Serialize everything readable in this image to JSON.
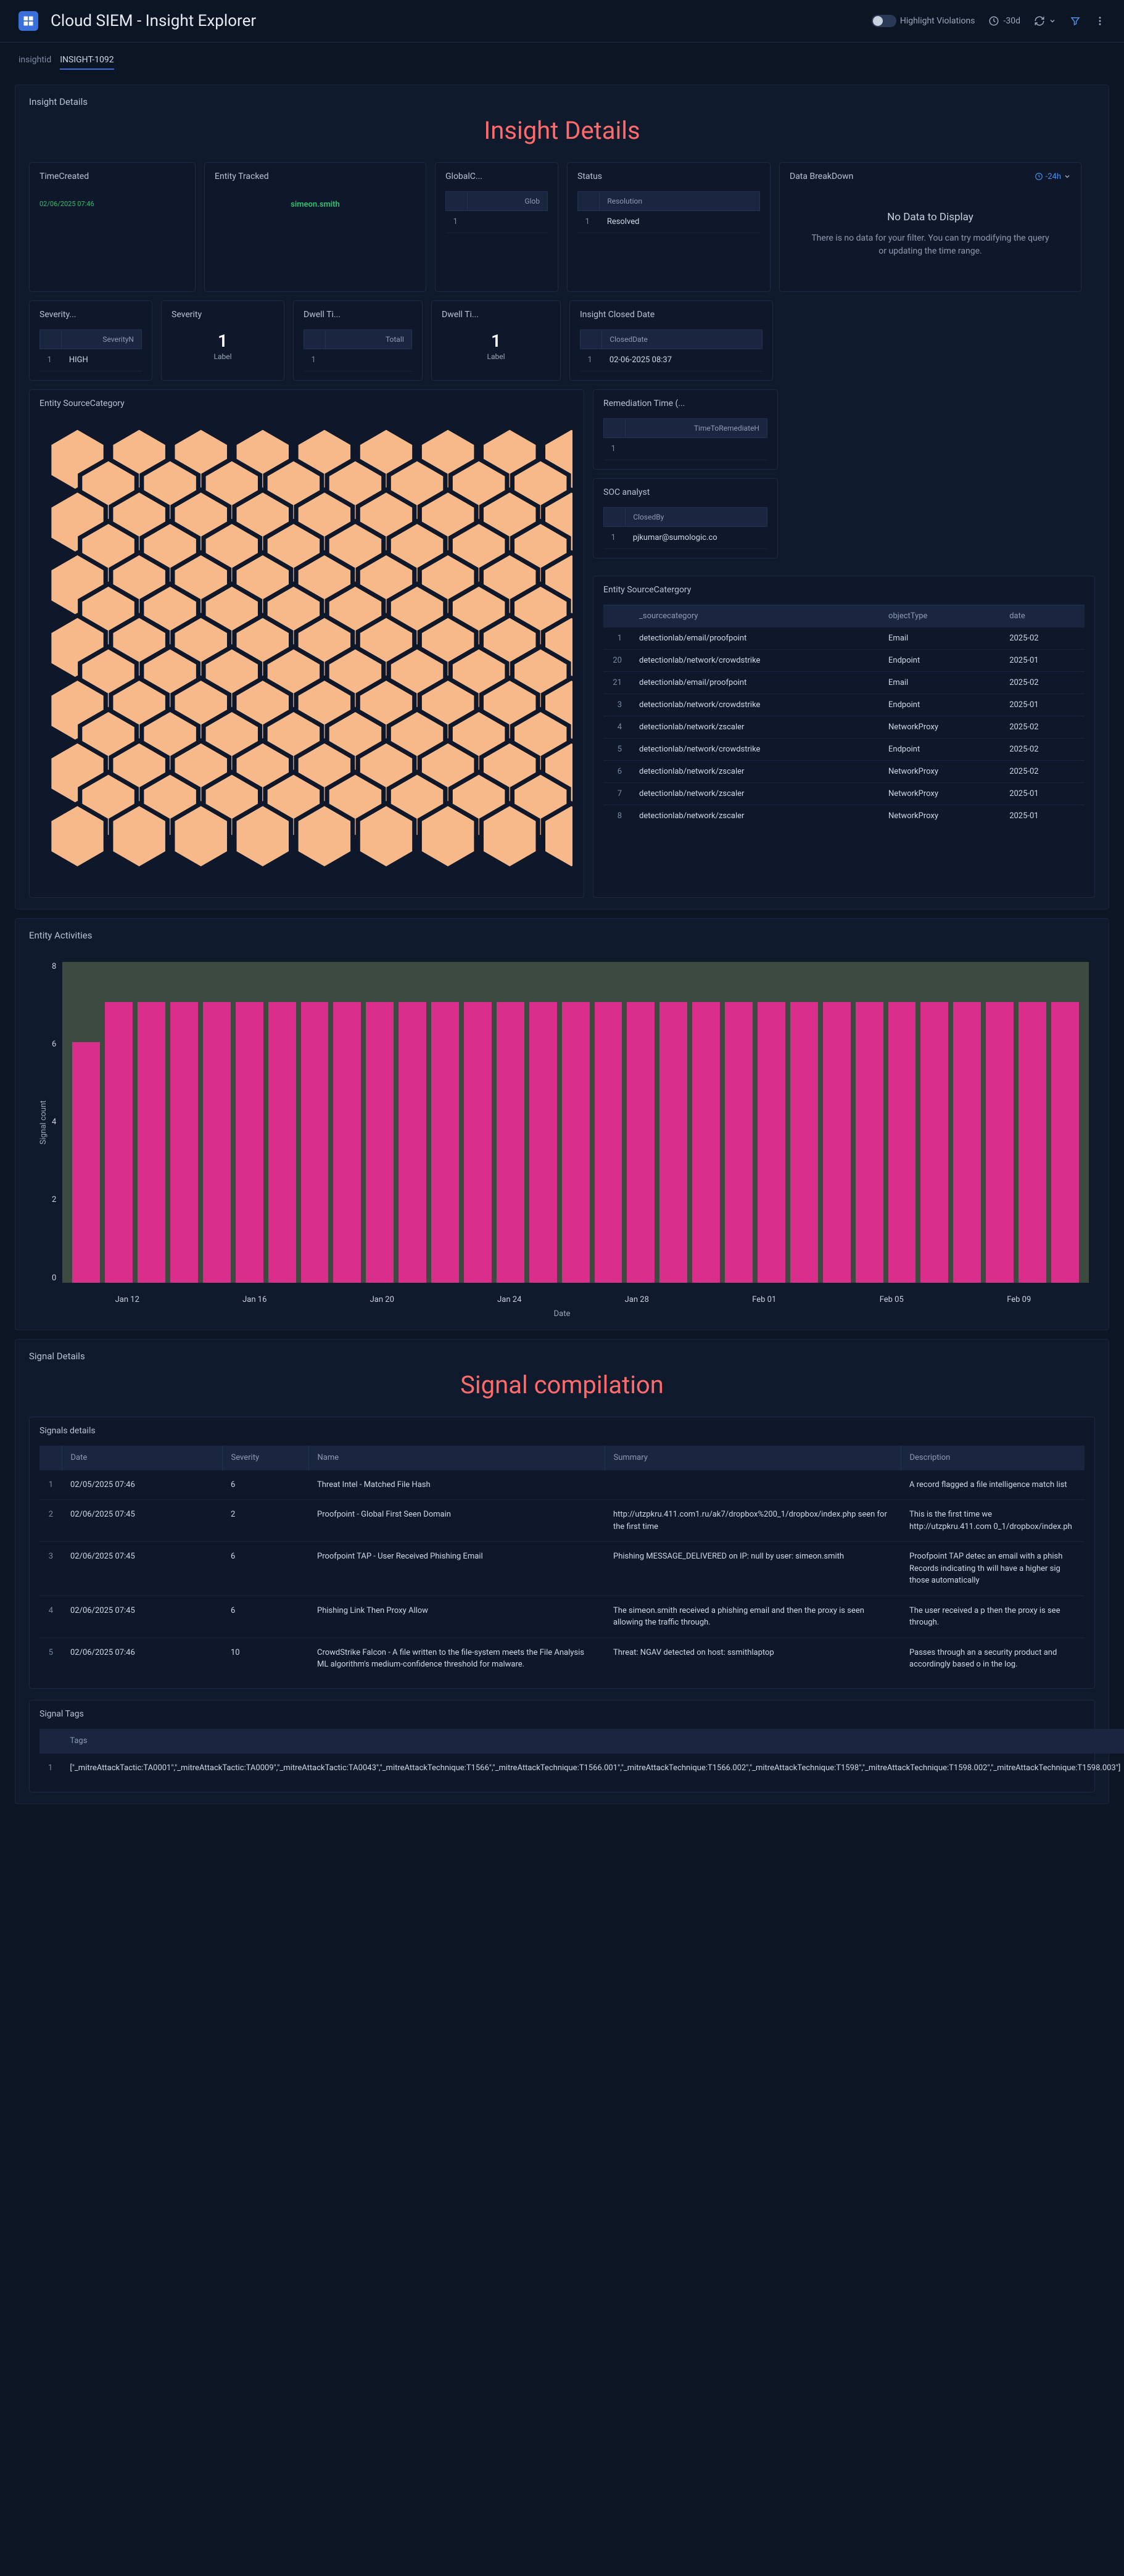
{
  "topbar": {
    "title": "Cloud SIEM - Insight Explorer",
    "highlight_label": "Highlight Violations",
    "time_range": "-30d"
  },
  "breadcrumb": {
    "root": "insightid",
    "current": "INSIGHT-1092"
  },
  "insight_panel": {
    "title": "Insight Details",
    "heading": "Insight Details",
    "cards": {
      "time_created": {
        "label": "TimeCreated",
        "value": "02/06/2025 07:46"
      },
      "entity_tracked": {
        "label": "Entity Tracked",
        "value": "simeon.smith"
      },
      "global_confidence": {
        "label": "GlobalC...",
        "col": "Glob",
        "idx": "1",
        "val": ""
      },
      "status": {
        "label": "Status",
        "col": "Resolution",
        "idx": "1",
        "val": "Resolved"
      },
      "severity_name": {
        "label": "Severity...",
        "col": "SeverityN",
        "idx": "1",
        "val": "HIGH"
      },
      "severity": {
        "label": "Severity",
        "num": "1",
        "sub": "Label"
      },
      "dwell_time_total": {
        "label": "Dwell Ti...",
        "col": "TotalI",
        "idx": "1",
        "val": ""
      },
      "dwell_time": {
        "label": "Dwell Ti...",
        "num": "1",
        "sub": "Label"
      },
      "closed_date": {
        "label": "Insight Closed Date",
        "col": "ClosedDate",
        "idx": "1",
        "val": "02-06-2025 08:37"
      },
      "remediation": {
        "label": "Remediation Time (...",
        "col": "TimeToRemediateH",
        "idx": "1",
        "val": ""
      },
      "soc_analyst": {
        "label": "SOC analyst",
        "col": "ClosedBy",
        "idx": "1",
        "val": "pjkumar@sumologic.co"
      }
    },
    "data_breakdown": {
      "label": "Data BreakDown",
      "range": "-24h",
      "empty_title": "No Data to Display",
      "empty_body": "There is no data for your filter. You can try modifying the query or updating the time range."
    },
    "entity_source_category_chart": {
      "label": "Entity SourceCategory",
      "type": "honeycomb",
      "hex_color": "#f7b98a",
      "border_color": "#0e182a",
      "rows": 13,
      "cols": 9
    },
    "entity_source_category_table": {
      "label": "Entity SourceCatergory",
      "columns": [
        "_sourcecategory",
        "objectType",
        "date"
      ],
      "rows": [
        {
          "idx": "1",
          "src": "detectionlab/email/proofpoint",
          "obj": "Email",
          "date": "2025-02"
        },
        {
          "idx": "20",
          "src": "detectionlab/network/crowdstrike",
          "obj": "Endpoint",
          "date": "2025-01"
        },
        {
          "idx": "21",
          "src": "detectionlab/email/proofpoint",
          "obj": "Email",
          "date": "2025-02"
        },
        {
          "idx": "3",
          "src": "detectionlab/network/crowdstrike",
          "obj": "Endpoint",
          "date": "2025-01"
        },
        {
          "idx": "4",
          "src": "detectionlab/network/zscaler",
          "obj": "NetworkProxy",
          "date": "2025-02"
        },
        {
          "idx": "5",
          "src": "detectionlab/network/crowdstrike",
          "obj": "Endpoint",
          "date": "2025-02"
        },
        {
          "idx": "6",
          "src": "detectionlab/network/zscaler",
          "obj": "NetworkProxy",
          "date": "2025-02"
        },
        {
          "idx": "7",
          "src": "detectionlab/network/zscaler",
          "obj": "NetworkProxy",
          "date": "2025-01"
        },
        {
          "idx": "8",
          "src": "detectionlab/network/zscaler",
          "obj": "NetworkProxy",
          "date": "2025-01"
        }
      ]
    }
  },
  "activities_panel": {
    "title": "Entity Activities",
    "chart": {
      "type": "bar",
      "y_label": "Signal count",
      "x_label": "Date",
      "y_ticks": [
        "8",
        "6",
        "4",
        "2",
        "0"
      ],
      "ylim": [
        0,
        8
      ],
      "bar_color": "#d92f8a",
      "plot_bg": "#3d4a3f",
      "x_ticks": [
        "Jan 12",
        "Jan 16",
        "Jan 20",
        "Jan 24",
        "Jan 28",
        "Feb 01",
        "Feb 05",
        "Feb 09"
      ],
      "values": [
        6,
        7,
        7,
        7,
        7,
        7,
        7,
        7,
        7,
        7,
        7,
        7,
        7,
        7,
        7,
        7,
        7,
        7,
        7,
        7,
        7,
        7,
        7,
        7,
        7,
        7,
        7,
        7,
        7,
        7,
        7
      ]
    }
  },
  "signal_panel": {
    "title": "Signal Details",
    "heading": "Signal compilation",
    "details_label": "Signals details",
    "columns": [
      "Date",
      "Severity",
      "Name",
      "Summary",
      "Description"
    ],
    "rows": [
      {
        "idx": "1",
        "date": "02/05/2025 07:46",
        "severity": "6",
        "name": "Threat Intel - Matched File Hash",
        "summary": "",
        "desc": "A record flagged a file intelligence match list"
      },
      {
        "idx": "2",
        "date": "02/06/2025 07:45",
        "severity": "2",
        "name": "Proofpoint - Global First Seen Domain",
        "summary": "http://utzpkru.411.com1.ru/ak7/dropbox%200_1/dropbox/index.php seen for the first time",
        "desc": "This is the first time we http://utzpkru.411.com 0_1/dropbox/index.ph"
      },
      {
        "idx": "3",
        "date": "02/06/2025 07:45",
        "severity": "6",
        "name": "Proofpoint TAP - User Received Phishing Email",
        "summary": "Phishing MESSAGE_DELIVERED on IP: null by user: simeon.smith",
        "desc": "Proofpoint TAP detec an email with a phish Records indicating th will have a higher sig those automatically"
      },
      {
        "idx": "4",
        "date": "02/06/2025 07:45",
        "severity": "6",
        "name": "Phishing Link Then Proxy Allow",
        "summary": "The simeon.smith received a phishing email and then the proxy is seen allowing the traffic through.",
        "desc": "The user received a p then the proxy is see through."
      },
      {
        "idx": "5",
        "date": "02/06/2025 07:46",
        "severity": "10",
        "name": "CrowdStrike Falcon - A file written to the file-system meets the File Analysis ML algorithm's medium-confidence threshold for malware.",
        "summary": "Threat: NGAV detected on host: ssmithlaptop",
        "desc": "Passes through an a security product and accordingly based o in the log."
      }
    ],
    "tags_label": "Signal Tags",
    "tags_col": "Tags",
    "tags_idx": "1",
    "tags_value": "[\"_mitreAttackTactic:TA0001\",\"_mitreAttackTactic:TA0009\",\"_mitreAttackTactic:TA0043\",\"_mitreAttackTechnique:T1566\",\"_mitreAttackTechnique:T1566.001\",\"_mitreAttackTechnique:T1566.002\",\"_mitreAttackTechnique:T1598\",\"_mitreAttackTechnique:T1598.002\",\"_mitreAttackTechnique:T1598.003\"]"
  }
}
